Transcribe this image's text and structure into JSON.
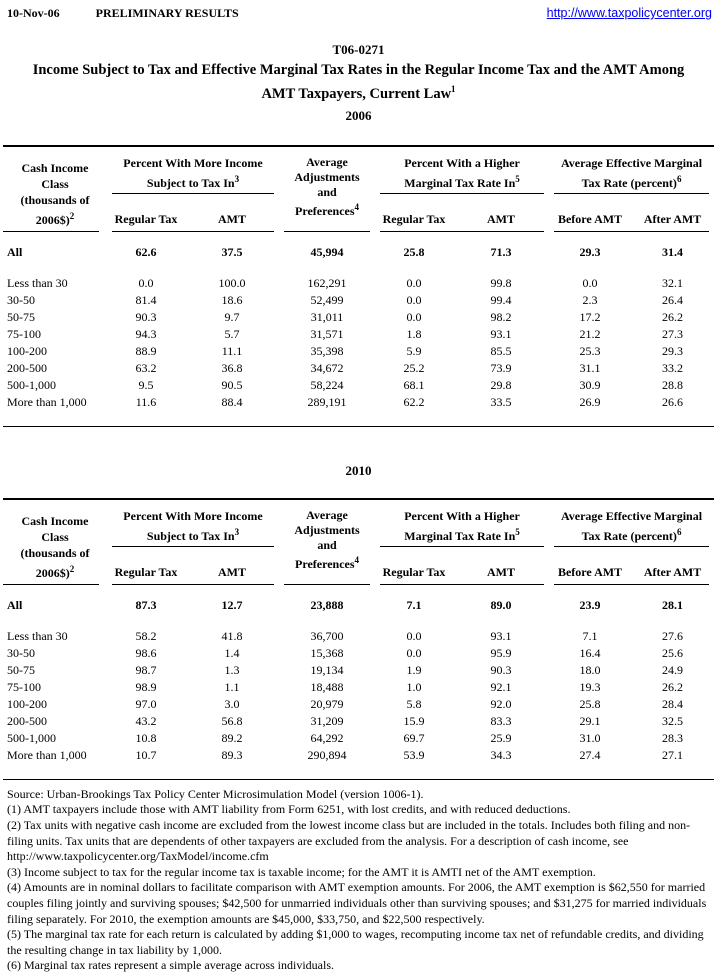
{
  "page": {
    "date": "10-Nov-06",
    "status": "PRELIMINARY RESULTS",
    "url": "http://www.taxpolicycenter.org"
  },
  "title": {
    "code": "T06-0271",
    "line1": "Income Subject to Tax and Effective Marginal Tax Rates in the Regular Income Tax and the AMT Among",
    "line2": "AMT Taxpayers, Current Law",
    "sup": "1"
  },
  "header_labels": {
    "income_class": "Cash Income Class (thousands of 2006$)",
    "income_class_sup": "2",
    "group1": "Percent With More Income Subject to Tax In",
    "group1_sup": "3",
    "adjustments": "Average Adjustments and Preferences",
    "adjustments_sup": "4",
    "group2": "Percent With a Higher Marginal Tax Rate In",
    "group2_sup": "5",
    "group3": "Average Effective Marginal Tax Rate (percent)",
    "group3_sup": "6",
    "regular_tax": "Regular Tax",
    "amt": "AMT",
    "before_amt": "Before AMT",
    "after_amt": "After AMT"
  },
  "tables": [
    {
      "year": "2006",
      "all_row": {
        "label": "All",
        "values": [
          "62.6",
          "37.5",
          "45,994",
          "25.8",
          "71.3",
          "29.3",
          "31.4"
        ]
      },
      "rows": [
        {
          "label": "Less than 30",
          "values": [
            "0.0",
            "100.0",
            "162,291",
            "0.0",
            "99.8",
            "0.0",
            "32.1"
          ]
        },
        {
          "label": "30-50",
          "values": [
            "81.4",
            "18.6",
            "52,499",
            "0.0",
            "99.4",
            "2.3",
            "26.4"
          ]
        },
        {
          "label": "50-75",
          "values": [
            "90.3",
            "9.7",
            "31,011",
            "0.0",
            "98.2",
            "17.2",
            "26.2"
          ]
        },
        {
          "label": "75-100",
          "values": [
            "94.3",
            "5.7",
            "31,571",
            "1.8",
            "93.1",
            "21.2",
            "27.3"
          ]
        },
        {
          "label": "100-200",
          "values": [
            "88.9",
            "11.1",
            "35,398",
            "5.9",
            "85.5",
            "25.3",
            "29.3"
          ]
        },
        {
          "label": "200-500",
          "values": [
            "63.2",
            "36.8",
            "34,672",
            "25.2",
            "73.9",
            "31.1",
            "33.2"
          ]
        },
        {
          "label": "500-1,000",
          "values": [
            "9.5",
            "90.5",
            "58,224",
            "68.1",
            "29.8",
            "30.9",
            "28.8"
          ]
        },
        {
          "label": "More than 1,000",
          "values": [
            "11.6",
            "88.4",
            "289,191",
            "62.2",
            "33.5",
            "26.9",
            "26.6"
          ]
        }
      ]
    },
    {
      "year": "2010",
      "all_row": {
        "label": "All",
        "values": [
          "87.3",
          "12.7",
          "23,888",
          "7.1",
          "89.0",
          "23.9",
          "28.1"
        ]
      },
      "rows": [
        {
          "label": "Less than 30",
          "values": [
            "58.2",
            "41.8",
            "36,700",
            "0.0",
            "93.1",
            "7.1",
            "27.6"
          ]
        },
        {
          "label": "30-50",
          "values": [
            "98.6",
            "1.4",
            "15,368",
            "0.0",
            "95.9",
            "16.4",
            "25.6"
          ]
        },
        {
          "label": "50-75",
          "values": [
            "98.7",
            "1.3",
            "19,134",
            "1.9",
            "90.3",
            "18.0",
            "24.9"
          ]
        },
        {
          "label": "75-100",
          "values": [
            "98.9",
            "1.1",
            "18,488",
            "1.0",
            "92.1",
            "19.3",
            "26.2"
          ]
        },
        {
          "label": "100-200",
          "values": [
            "97.0",
            "3.0",
            "20,979",
            "5.8",
            "92.0",
            "25.8",
            "28.4"
          ]
        },
        {
          "label": "200-500",
          "values": [
            "43.2",
            "56.8",
            "31,209",
            "15.9",
            "83.3",
            "29.1",
            "32.5"
          ]
        },
        {
          "label": "500-1,000",
          "values": [
            "10.8",
            "89.2",
            "64,292",
            "69.7",
            "25.9",
            "31.0",
            "28.3"
          ]
        },
        {
          "label": "More than 1,000",
          "values": [
            "10.7",
            "89.3",
            "290,894",
            "53.9",
            "34.3",
            "27.4",
            "27.1"
          ]
        }
      ]
    }
  ],
  "footnotes": [
    "Source: Urban-Brookings Tax Policy Center Microsimulation Model (version 1006-1).",
    "(1) AMT taxpayers include those with AMT liability from Form 6251, with lost credits, and with reduced deductions.",
    "(2) Tax units with negative cash income are excluded from the lowest income class but are included in the totals. Includes both filing and non-filing units. Tax units that are dependents of other taxpayers are excluded from the analysis. For a description of cash income, see http://www.taxpolicycenter.org/TaxModel/income.cfm",
    "(3) Income subject to tax for the regular income tax is taxable income; for the AMT it is AMTI net of the AMT exemption.",
    "(4) Amounts are in nominal dollars to facilitate comparison with AMT exemption amounts.  For 2006, the AMT exemption is $62,550 for married couples filing jointly and surviving spouses; $42,500 for unmarried individuals other than surviving spouses; and $31,275 for married individuals filing separately. For 2010, the exemption amounts are $45,000, $33,750, and $22,500 respectively.",
    "(5) The marginal tax rate for each return is calculated by adding $1,000 to wages, recomputing income tax net of refundable credits, and dividing the resulting change in tax liability by 1,000.",
    "(6) Marginal tax rates represent a simple average across individuals."
  ],
  "colors": {
    "link_blue": "#0000ee",
    "text": "#000000",
    "background": "#ffffff"
  }
}
